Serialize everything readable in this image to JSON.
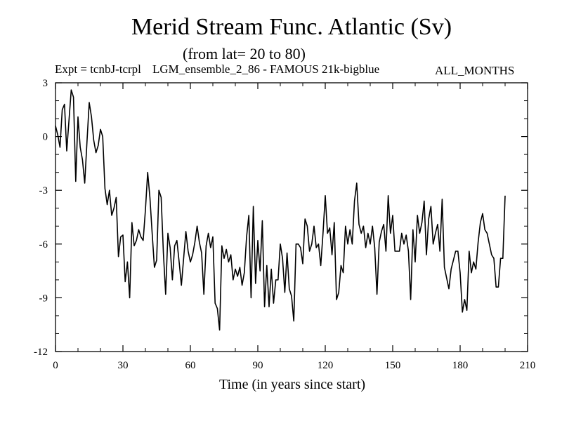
{
  "chart_data": {
    "type": "line",
    "title": "Merid Stream Func. Atlantic (Sv)",
    "subtitle": "(from lat= 20 to 80)",
    "expt_label": "Expt = tcnbJ-tcrpl",
    "run_name": "LGM_ensemble_2_86 - FAMOUS 21k-bigblue",
    "months_label": "ALL_MONTHS",
    "xlabel": "Time (in years since start)",
    "ylabel": "",
    "xlim": [
      0,
      210
    ],
    "ylim": [
      -12,
      3
    ],
    "xticks": [
      0,
      30,
      60,
      90,
      120,
      150,
      180,
      210
    ],
    "yticks": [
      3,
      0,
      -3,
      -6,
      -9,
      -12
    ],
    "series": [
      {
        "name": "Merid Stream Func. Atlantic",
        "x": [
          0,
          1,
          2,
          3,
          4,
          5,
          6,
          7,
          8,
          9,
          10,
          11,
          12,
          13,
          14,
          15,
          16,
          17,
          18,
          19,
          20,
          21,
          22,
          23,
          24,
          25,
          26,
          27,
          28,
          29,
          30,
          31,
          32,
          33,
          34,
          35,
          36,
          37,
          38,
          39,
          40,
          41,
          42,
          43,
          44,
          45,
          46,
          47,
          48,
          49,
          50,
          51,
          52,
          53,
          54,
          55,
          56,
          57,
          58,
          59,
          60,
          61,
          62,
          63,
          64,
          65,
          66,
          67,
          68,
          69,
          70,
          71,
          72,
          73,
          74,
          75,
          76,
          77,
          78,
          79,
          80,
          81,
          82,
          83,
          84,
          85,
          86,
          87,
          88,
          89,
          90,
          91,
          92,
          93,
          94,
          95,
          96,
          97,
          98,
          99,
          100,
          101,
          102,
          103,
          104,
          105,
          106,
          107,
          108,
          109,
          110,
          111,
          112,
          113,
          114,
          115,
          116,
          117,
          118,
          119,
          120,
          121,
          122,
          123,
          124,
          125,
          126,
          127,
          128,
          129,
          130,
          131,
          132,
          133,
          134,
          135,
          136,
          137,
          138,
          139,
          140,
          141,
          142,
          143,
          144,
          145,
          146,
          147,
          148,
          149,
          150,
          151,
          152,
          153,
          154,
          155,
          156,
          157,
          158,
          159,
          160,
          161,
          162,
          163,
          164,
          165,
          166,
          167,
          168,
          169,
          170,
          171,
          172,
          173,
          174,
          175,
          176,
          177,
          178,
          179,
          180,
          181,
          182,
          183,
          184,
          185,
          186,
          187,
          188,
          189,
          190,
          191,
          192,
          193,
          194,
          195,
          196,
          197,
          198,
          199,
          200
        ],
        "values": [
          0.6,
          0.1,
          -0.6,
          1.5,
          1.8,
          -0.8,
          0.9,
          2.6,
          2.2,
          -2.5,
          1.1,
          -0.6,
          -1.3,
          -2.6,
          -0.3,
          1.9,
          1.1,
          -0.2,
          -0.9,
          -0.5,
          0.4,
          0.0,
          -2.9,
          -3.8,
          -3.0,
          -4.4,
          -4.0,
          -3.4,
          -6.7,
          -5.6,
          -5.5,
          -8.1,
          -7.0,
          -9.0,
          -4.8,
          -6.1,
          -5.8,
          -5.2,
          -5.6,
          -5.8,
          -4.1,
          -2.0,
          -3.4,
          -5.4,
          -7.3,
          -6.9,
          -3.0,
          -3.4,
          -6.5,
          -8.8,
          -5.4,
          -6.2,
          -8.0,
          -6.1,
          -5.8,
          -7.0,
          -8.3,
          -6.8,
          -5.3,
          -6.4,
          -7.0,
          -6.6,
          -5.9,
          -5.0,
          -5.9,
          -6.5,
          -8.8,
          -6.1,
          -5.4,
          -6.2,
          -5.6,
          -9.3,
          -9.6,
          -10.8,
          -6.1,
          -6.8,
          -6.3,
          -7.0,
          -6.6,
          -8.0,
          -7.4,
          -7.8,
          -7.3,
          -8.3,
          -7.6,
          -5.6,
          -4.4,
          -9.0,
          -3.9,
          -8.2,
          -5.8,
          -7.5,
          -4.7,
          -9.5,
          -7.2,
          -9.5,
          -7.4,
          -9.3,
          -8.0,
          -8.0,
          -6.0,
          -6.8,
          -8.7,
          -6.5,
          -8.5,
          -8.9,
          -10.3,
          -6.0,
          -6.0,
          -6.2,
          -7.1,
          -4.6,
          -5.0,
          -6.4,
          -6.0,
          -5.0,
          -6.2,
          -6.0,
          -7.2,
          -5.4,
          -3.3,
          -5.4,
          -5.1,
          -6.6,
          -4.8,
          -9.1,
          -8.7,
          -7.2,
          -7.6,
          -5.0,
          -6.0,
          -5.2,
          -6.0,
          -3.6,
          -2.6,
          -4.9,
          -5.4,
          -5.0,
          -6.2,
          -5.4,
          -6.0,
          -5.0,
          -6.2,
          -8.8,
          -5.9,
          -5.3,
          -4.9,
          -6.4,
          -3.3,
          -5.4,
          -4.4,
          -6.4,
          -6.4,
          -6.4,
          -5.4,
          -6.0,
          -5.5,
          -6.4,
          -9.1,
          -5.2,
          -7.0,
          -4.4,
          -5.4,
          -4.8,
          -3.6,
          -6.6,
          -4.6,
          -3.9,
          -6.0,
          -5.4,
          -4.9,
          -6.4,
          -3.5,
          -7.3,
          -7.9,
          -8.5,
          -7.4,
          -6.9,
          -6.4,
          -6.4,
          -7.6,
          -9.8,
          -9.1,
          -9.7,
          -6.4,
          -7.6,
          -7.0,
          -7.4,
          -5.9,
          -4.8,
          -4.3,
          -5.2,
          -5.4,
          -6.0,
          -6.6,
          -6.8,
          -8.4,
          -8.4,
          -6.8,
          -6.8,
          -3.3
        ]
      }
    ]
  }
}
